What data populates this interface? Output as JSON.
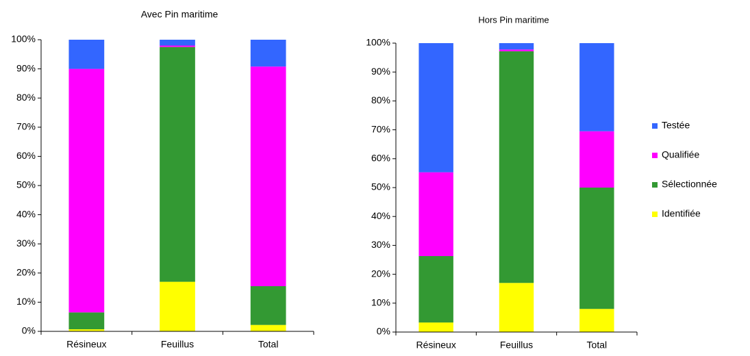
{
  "chart_data": [
    {
      "type": "stacked_bar",
      "title": "Avec Pin maritime",
      "categories": [
        "Résineux",
        "Feuillus",
        "Total"
      ],
      "series": [
        {
          "name": "Identifiée",
          "color": "#ffff00",
          "values": [
            0.7,
            17,
            2.2
          ]
        },
        {
          "name": "Sélectionnée",
          "color": "#339933",
          "values": [
            5.8,
            80.5,
            13.3
          ]
        },
        {
          "name": "Qualifiée",
          "color": "#ff00ff",
          "values": [
            83.5,
            0.5,
            75.3
          ]
        },
        {
          "name": "Testée",
          "color": "#3366ff",
          "values": [
            10,
            2,
            9.2
          ]
        }
      ],
      "ylim": [
        0,
        100
      ],
      "yticks": [
        {
          "value": 0,
          "label": "0%"
        },
        {
          "value": 10,
          "label": "10%"
        },
        {
          "value": 20,
          "label": "20%"
        },
        {
          "value": 30,
          "label": "30%"
        },
        {
          "value": 40,
          "label": "40%"
        },
        {
          "value": 50,
          "label": "50%"
        },
        {
          "value": 60,
          "label": "60%"
        },
        {
          "value": 70,
          "label": "70%"
        },
        {
          "value": 80,
          "label": "80%"
        },
        {
          "value": 90,
          "label": "90%"
        },
        {
          "value": 100,
          "label": "100%"
        }
      ]
    },
    {
      "type": "stacked_bar",
      "title": "Hors Pin maritime",
      "categories": [
        "Résineux",
        "Feuillus",
        "Total"
      ],
      "series": [
        {
          "name": "Identifiée",
          "color": "#ffff00",
          "values": [
            3.3,
            17,
            8
          ]
        },
        {
          "name": "Sélectionnée",
          "color": "#339933",
          "values": [
            23,
            80.2,
            42
          ]
        },
        {
          "name": "Qualifiée",
          "color": "#ff00ff",
          "values": [
            29,
            0.6,
            19.5
          ]
        },
        {
          "name": "Testée",
          "color": "#3366ff",
          "values": [
            44.7,
            2.2,
            30.5
          ]
        }
      ],
      "ylim": [
        0,
        100
      ],
      "yticks": [
        {
          "value": 0,
          "label": "0%"
        },
        {
          "value": 10,
          "label": "10%"
        },
        {
          "value": 20,
          "label": "20%"
        },
        {
          "value": 30,
          "label": "30%"
        },
        {
          "value": 40,
          "label": "40%"
        },
        {
          "value": 50,
          "label": "50%"
        },
        {
          "value": 60,
          "label": "60%"
        },
        {
          "value": 70,
          "label": "70%"
        },
        {
          "value": 80,
          "label": "80%"
        },
        {
          "value": 90,
          "label": "90%"
        },
        {
          "value": 100,
          "label": "100%"
        }
      ],
      "legend": "right"
    }
  ]
}
